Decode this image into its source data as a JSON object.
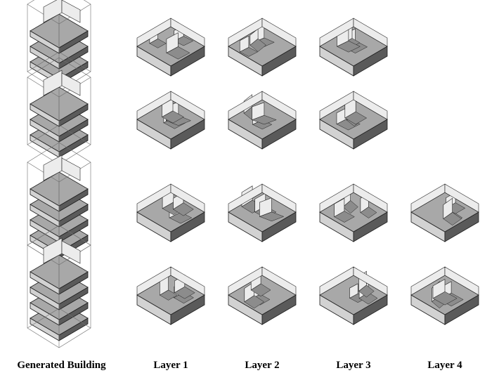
{
  "columns": [
    {
      "label": "Generated Building"
    },
    {
      "label": "Layer 1"
    },
    {
      "label": "Layer 2"
    },
    {
      "label": "Layer 3"
    },
    {
      "label": "Layer 4"
    }
  ],
  "rows": [
    {
      "layers": 3
    },
    {
      "layers": 3
    },
    {
      "layers": 4
    },
    {
      "layers": 4
    }
  ],
  "colors": {
    "top_face": "#a8a8a8",
    "wall_light": "#d2d2d2",
    "wall_dark": "#5a5a5a",
    "floor_shade": "#8c8c8c",
    "outline": "#1e1e1e",
    "frame": "#6e6e6e"
  }
}
